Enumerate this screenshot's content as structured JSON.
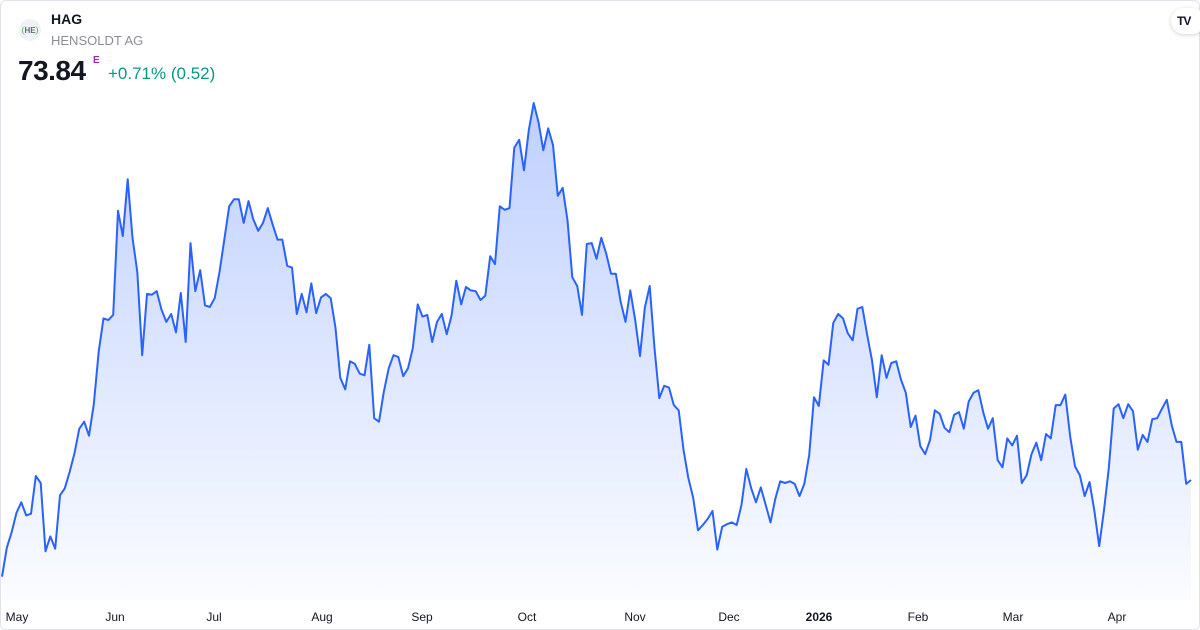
{
  "header": {
    "symbol": "HAG",
    "company": "HENSOLDT AG",
    "logo_text": "HE",
    "price": "73.84",
    "price_flag": "E",
    "change": "+0.71% (0.52)"
  },
  "brand_badge": {
    "icon": "tradingview-logo-icon",
    "text": "TV"
  },
  "colors": {
    "line": "#2962ff",
    "change_positive": "#089981",
    "flag": "#9c27b0"
  },
  "chart_data": {
    "type": "area",
    "title": "",
    "xlabel": "",
    "ylabel": "",
    "grid": false,
    "x_ticks": [
      "May",
      "Jun",
      "Jul",
      "Aug",
      "Sep",
      "Oct",
      "Nov",
      "Dec",
      "2026",
      "Feb",
      "Mar",
      "Apr"
    ],
    "bold_ticks": [
      "2026"
    ],
    "last_value": 73.84,
    "values": [
      62.8,
      66.1,
      67.9,
      70.1,
      71.3,
      69.8,
      70.0,
      74.3,
      73.5,
      65.7,
      67.4,
      66.0,
      72.1,
      72.9,
      74.8,
      76.9,
      79.7,
      80.5,
      78.9,
      82.5,
      88.5,
      92.3,
      92.1,
      92.7,
      104.6,
      101.7,
      108.2,
      101.5,
      97.6,
      88.1,
      95.1,
      95.0,
      95.4,
      93.3,
      91.9,
      92.8,
      90.7,
      95.2,
      89.6,
      100.9,
      95.4,
      97.8,
      93.8,
      93.6,
      94.6,
      97.6,
      101.3,
      105.1,
      105.9,
      105.9,
      103.2,
      105.7,
      103.6,
      102.3,
      103.2,
      104.9,
      103.0,
      101.3,
      101.3,
      98.3,
      98.1,
      92.8,
      95.1,
      93.0,
      96.3,
      92.9,
      94.7,
      95.1,
      94.6,
      91.2,
      85.5,
      84.2,
      87.4,
      87.1,
      86.0,
      85.8,
      89.3,
      80.9,
      80.5,
      83.9,
      86.6,
      88.1,
      87.9,
      85.7,
      86.6,
      88.9,
      93.9,
      92.5,
      92.7,
      89.6,
      91.9,
      92.8,
      90.5,
      92.6,
      96.6,
      93.9,
      95.9,
      95.5,
      95.4,
      94.4,
      94.9,
      99.4,
      98.5,
      105.1,
      104.7,
      104.9,
      111.8,
      112.7,
      109.2,
      113.8,
      116.9,
      114.7,
      111.5,
      114.0,
      112.1,
      106.3,
      107.2,
      103.5,
      97.0,
      96.0,
      92.7,
      100.8,
      100.9,
      99.1,
      101.5,
      99.7,
      97.4,
      97.4,
      94.2,
      91.9,
      95.5,
      92.1,
      88.0,
      93.5,
      96.0,
      88.9,
      83.2,
      84.6,
      84.4,
      82.4,
      81.8,
      77.3,
      74.1,
      71.8,
      68.1,
      68.7,
      69.4,
      70.3,
      65.9,
      68.5,
      68.8,
      69.0,
      68.7,
      71.0,
      75.1,
      72.9,
      71.3,
      73.0,
      71.0,
      69.0,
      71.7,
      73.7,
      73.5,
      73.7,
      73.4,
      72.0,
      73.4,
      76.7,
      83.3,
      82.3,
      87.5,
      87.0,
      91.8,
      92.8,
      92.3,
      90.6,
      89.8,
      93.4,
      93.6,
      90.4,
      87.5,
      83.3,
      88.1,
      85.5,
      87.2,
      87.4,
      85.3,
      83.8,
      79.9,
      81.2,
      77.7,
      76.8,
      78.4,
      81.8,
      81.4,
      79.8,
      79.3,
      81.3,
      81.6,
      79.7,
      82.8,
      83.8,
      84.1,
      81.6,
      79.7,
      80.9,
      76.1,
      75.3,
      78.6,
      77.8,
      78.9,
      73.5,
      74.4,
      76.8,
      78.1,
      76.1,
      79.1,
      78.6,
      82.4,
      82.4,
      83.6,
      78.8,
      75.4,
      74.4,
      72.0,
      73.6,
      70.4,
      66.3,
      70.4,
      75.2,
      82.0,
      82.5,
      80.9,
      82.5,
      81.7,
      77.3,
      79.0,
      78.2,
      80.8,
      80.9,
      82.0,
      83.0,
      80.1,
      78.2,
      78.2,
      73.4,
      73.84
    ]
  }
}
